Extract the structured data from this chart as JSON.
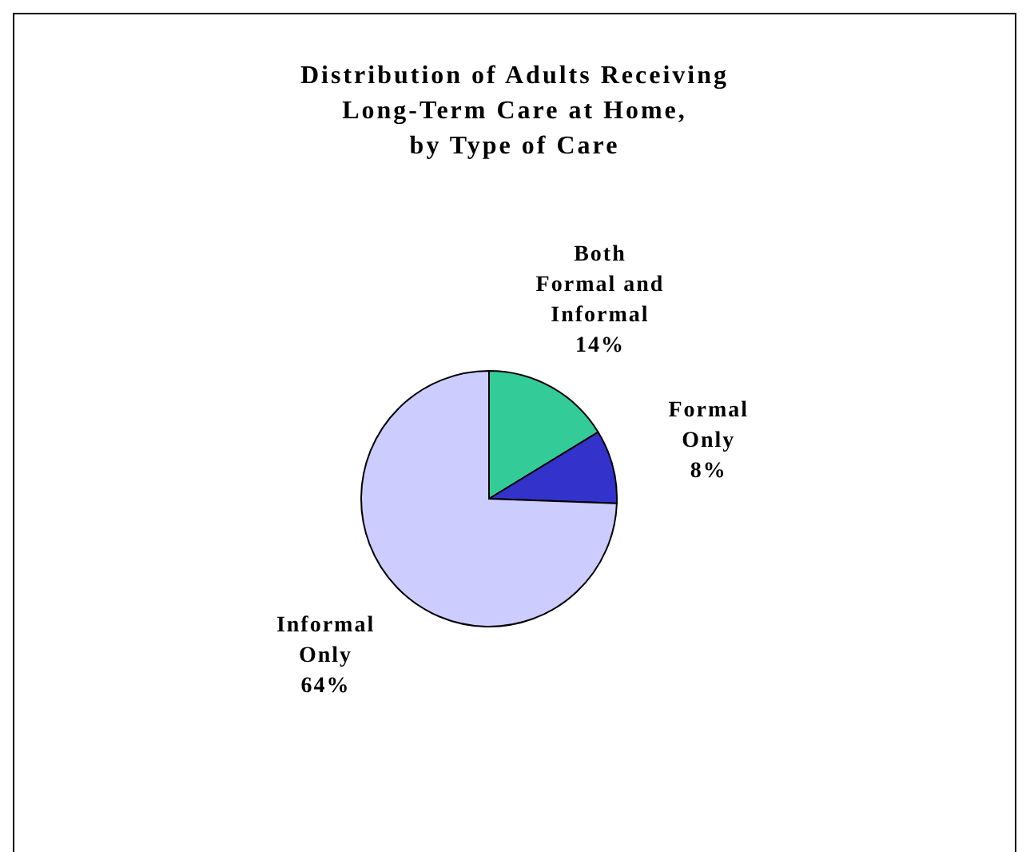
{
  "chart_data": {
    "type": "pie",
    "title": "Distribution of Adults Receiving\nLong-Term Care at Home,\nby Type of Care",
    "categories": [
      "Both Formal and Informal",
      "Formal Only",
      "Informal Only"
    ],
    "values": [
      14,
      8,
      64
    ],
    "value_labels": [
      "14%",
      "8%",
      "64%"
    ],
    "colors": [
      "#33cc99",
      "#3333cc",
      "#ccccff"
    ],
    "legend": false
  }
}
